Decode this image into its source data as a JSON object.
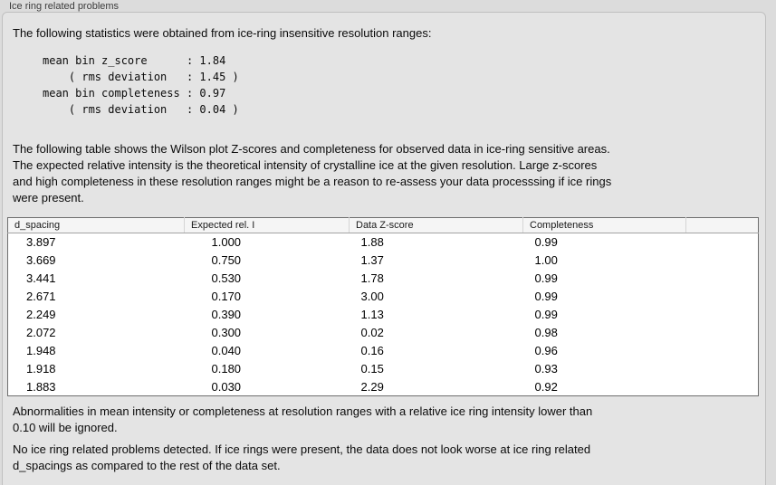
{
  "panel": {
    "title": "Ice ring related problems"
  },
  "intro": "The following statistics were obtained from ice-ring insensitive resolution ranges:",
  "stats": {
    "mean_bin_z_score": "1.84",
    "z_score_rms_deviation": "1.45",
    "mean_bin_completeness": "0.97",
    "completeness_rms_deviation": "0.04",
    "block_lines": [
      "mean bin z_score      : 1.84",
      "    ( rms deviation   : 1.45 )",
      "mean bin completeness : 0.97",
      "    ( rms deviation   : 0.04 )"
    ]
  },
  "description_lines": [
    "The following table shows the Wilson plot Z-scores and completeness for observed data in ice-ring sensitive areas.",
    "The expected relative intensity is the theoretical intensity of crystalline ice at the given resolution. Large z-scores",
    "and high completeness in these resolution ranges might be a reason to re-assess your data processsing if ice rings",
    "were present."
  ],
  "table": {
    "columns": [
      "d_spacing",
      "Expected rel. I",
      "Data Z-score",
      "Completeness",
      ""
    ],
    "rows": [
      [
        "3.897",
        "1.000",
        "1.88",
        "0.99",
        ""
      ],
      [
        "3.669",
        "0.750",
        "1.37",
        "1.00",
        ""
      ],
      [
        "3.441",
        "0.530",
        "1.78",
        "0.99",
        ""
      ],
      [
        "2.671",
        "0.170",
        "3.00",
        "0.99",
        ""
      ],
      [
        "2.249",
        "0.390",
        "1.13",
        "0.99",
        ""
      ],
      [
        "2.072",
        "0.300",
        "0.02",
        "0.98",
        ""
      ],
      [
        "1.948",
        "0.040",
        "0.16",
        "0.96",
        ""
      ],
      [
        "1.918",
        "0.180",
        "0.15",
        "0.93",
        ""
      ],
      [
        "1.883",
        "0.030",
        "2.29",
        "0.92",
        ""
      ]
    ]
  },
  "ignore_note_lines": [
    "Abnormalities in mean intensity or completeness at resolution ranges with a relative ice ring intensity lower than",
    "0.10 will be ignored."
  ],
  "conclusion_lines": [
    "No ice ring related problems detected. If ice rings were present, the data does not look worse at ice ring related",
    "d_spacings as compared to the rest of the data set."
  ],
  "colors": {
    "page_background": "#dcdcdc",
    "group_box_background": "#e4e4e4",
    "group_box_border": "#c0c0c0",
    "table_border": "#6e6e6e",
    "table_header_background": "#f5f5f5",
    "text": "#000000"
  }
}
